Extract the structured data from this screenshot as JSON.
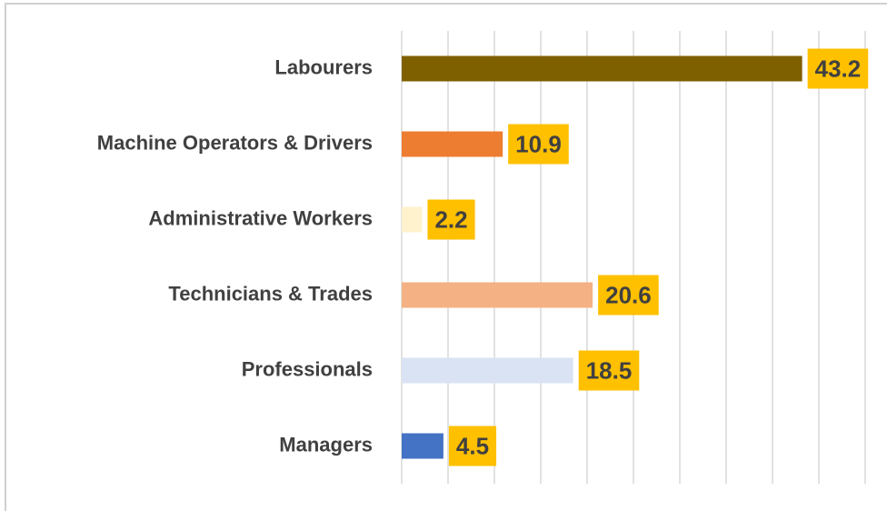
{
  "chart_data": {
    "type": "bar",
    "orientation": "horizontal",
    "categories": [
      "Labourers",
      "Machine Operators & Drivers",
      "Administrative Workers",
      "Technicians & Trades",
      "Professionals",
      "Managers"
    ],
    "values": [
      43.2,
      10.9,
      2.2,
      20.6,
      18.5,
      4.5
    ],
    "colors": [
      "#7f6000",
      "#ed7d31",
      "#fff2cc",
      "#f4b183",
      "#dae3f3",
      "#4472c4"
    ],
    "label_box_color": "#ffc000",
    "xlim": [
      0,
      50
    ],
    "xticks": [
      0,
      5,
      10,
      15,
      20,
      25,
      30,
      35,
      40,
      45,
      50
    ],
    "grid": true
  }
}
